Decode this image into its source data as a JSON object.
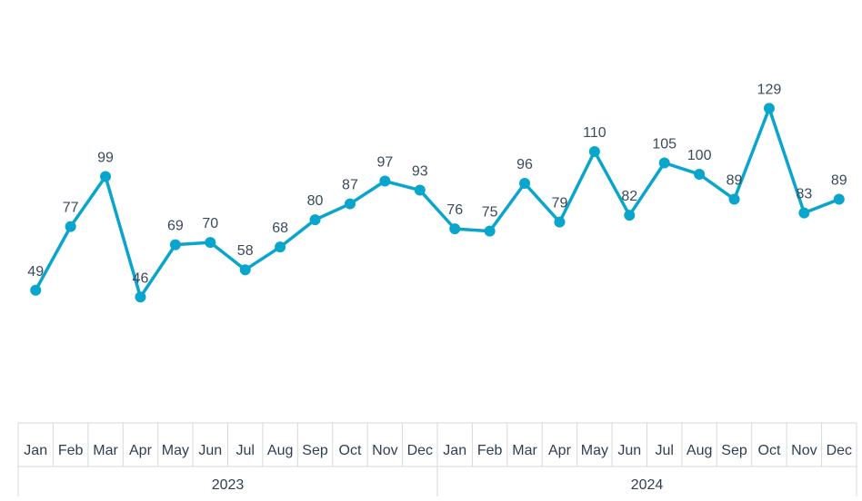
{
  "chart_data": {
    "type": "line",
    "title": "",
    "xlabel": "",
    "ylabel": "",
    "groups": [
      {
        "label": "2023",
        "categories": [
          "Jan",
          "Feb",
          "Mar",
          "Apr",
          "May",
          "Jun",
          "Jul",
          "Aug",
          "Sep",
          "Oct",
          "Nov",
          "Dec"
        ]
      },
      {
        "label": "2024",
        "categories": [
          "Jan",
          "Feb",
          "Mar",
          "Apr",
          "May",
          "Jun",
          "Jul",
          "Aug",
          "Sep",
          "Oct",
          "Nov",
          "Dec"
        ]
      }
    ],
    "series": [
      {
        "values": [
          49,
          77,
          99,
          46,
          69,
          70,
          58,
          68,
          80,
          87,
          97,
          93,
          76,
          75,
          96,
          79,
          110,
          82,
          105,
          100,
          89,
          129,
          83,
          89
        ],
        "color": "#0aa5cc",
        "show_data_labels": true,
        "marker": "circle"
      }
    ],
    "ylim": [
      0,
      150
    ],
    "grid": false,
    "legend": "none"
  }
}
